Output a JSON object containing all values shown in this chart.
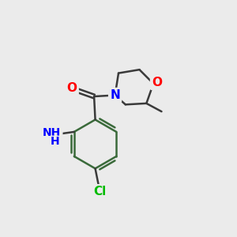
{
  "background_color": "#ebebeb",
  "bond_color": "#3a3a3a",
  "bond_width": 1.8,
  "atom_colors": {
    "O": "#ff0000",
    "N": "#0000ff",
    "Cl": "#00bb00",
    "NH": "#0000ff"
  },
  "font_size": 10,
  "aromatic_color": "#3a6a3a"
}
